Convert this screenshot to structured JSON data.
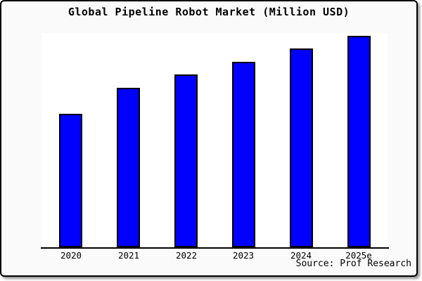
{
  "figure": {
    "title": "Global Pipeline Robot Market (Million USD)",
    "source_note": "Source: Prof Research"
  },
  "chart_data": {
    "type": "bar",
    "title": "Global Pipeline Robot Market (Million USD)",
    "categories": [
      "2020",
      "2021",
      "2022",
      "2023",
      "2024",
      "2025e"
    ],
    "values": [
      190,
      227,
      246,
      264,
      283,
      301
    ],
    "xlabel": "",
    "ylabel": "",
    "ylim": [
      0,
      305
    ],
    "grid": false,
    "legend_position": "none",
    "y_axis_labels_visible": false,
    "bar_color": "#0000ff",
    "bar_edge_color": "#000000",
    "figure_background": "#fafafa",
    "plot_background": "#ffffff",
    "source_note": "Source: Prof Research"
  }
}
